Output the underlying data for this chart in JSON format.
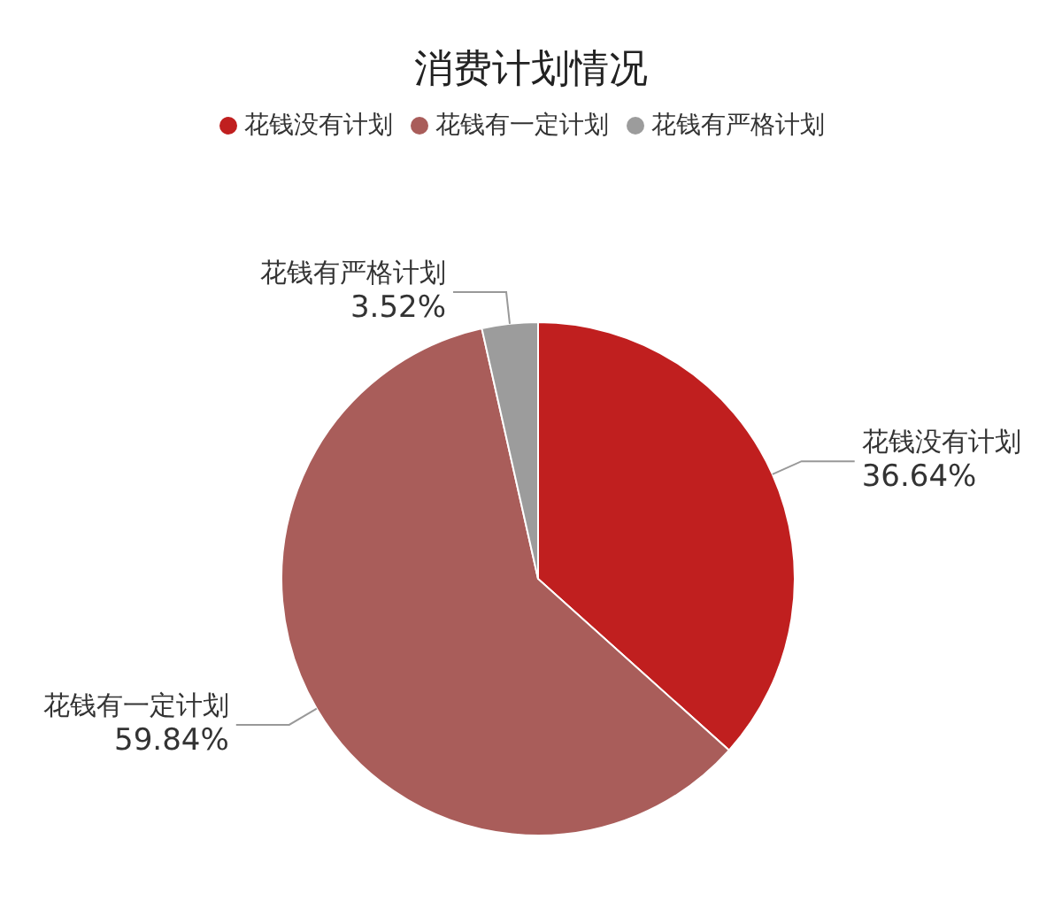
{
  "chart_data": {
    "type": "pie",
    "title": "消费计划情况",
    "categories": [
      "花钱没有计划",
      "花钱有一定计划",
      "花钱有严格计划"
    ],
    "values": [
      36.64,
      59.84,
      3.52
    ],
    "value_labels": [
      "36.64%",
      "59.84%",
      "3.52%"
    ],
    "colors": [
      "#c01f1f",
      "#a95d5a",
      "#9c9c9c"
    ],
    "legend": "top"
  }
}
